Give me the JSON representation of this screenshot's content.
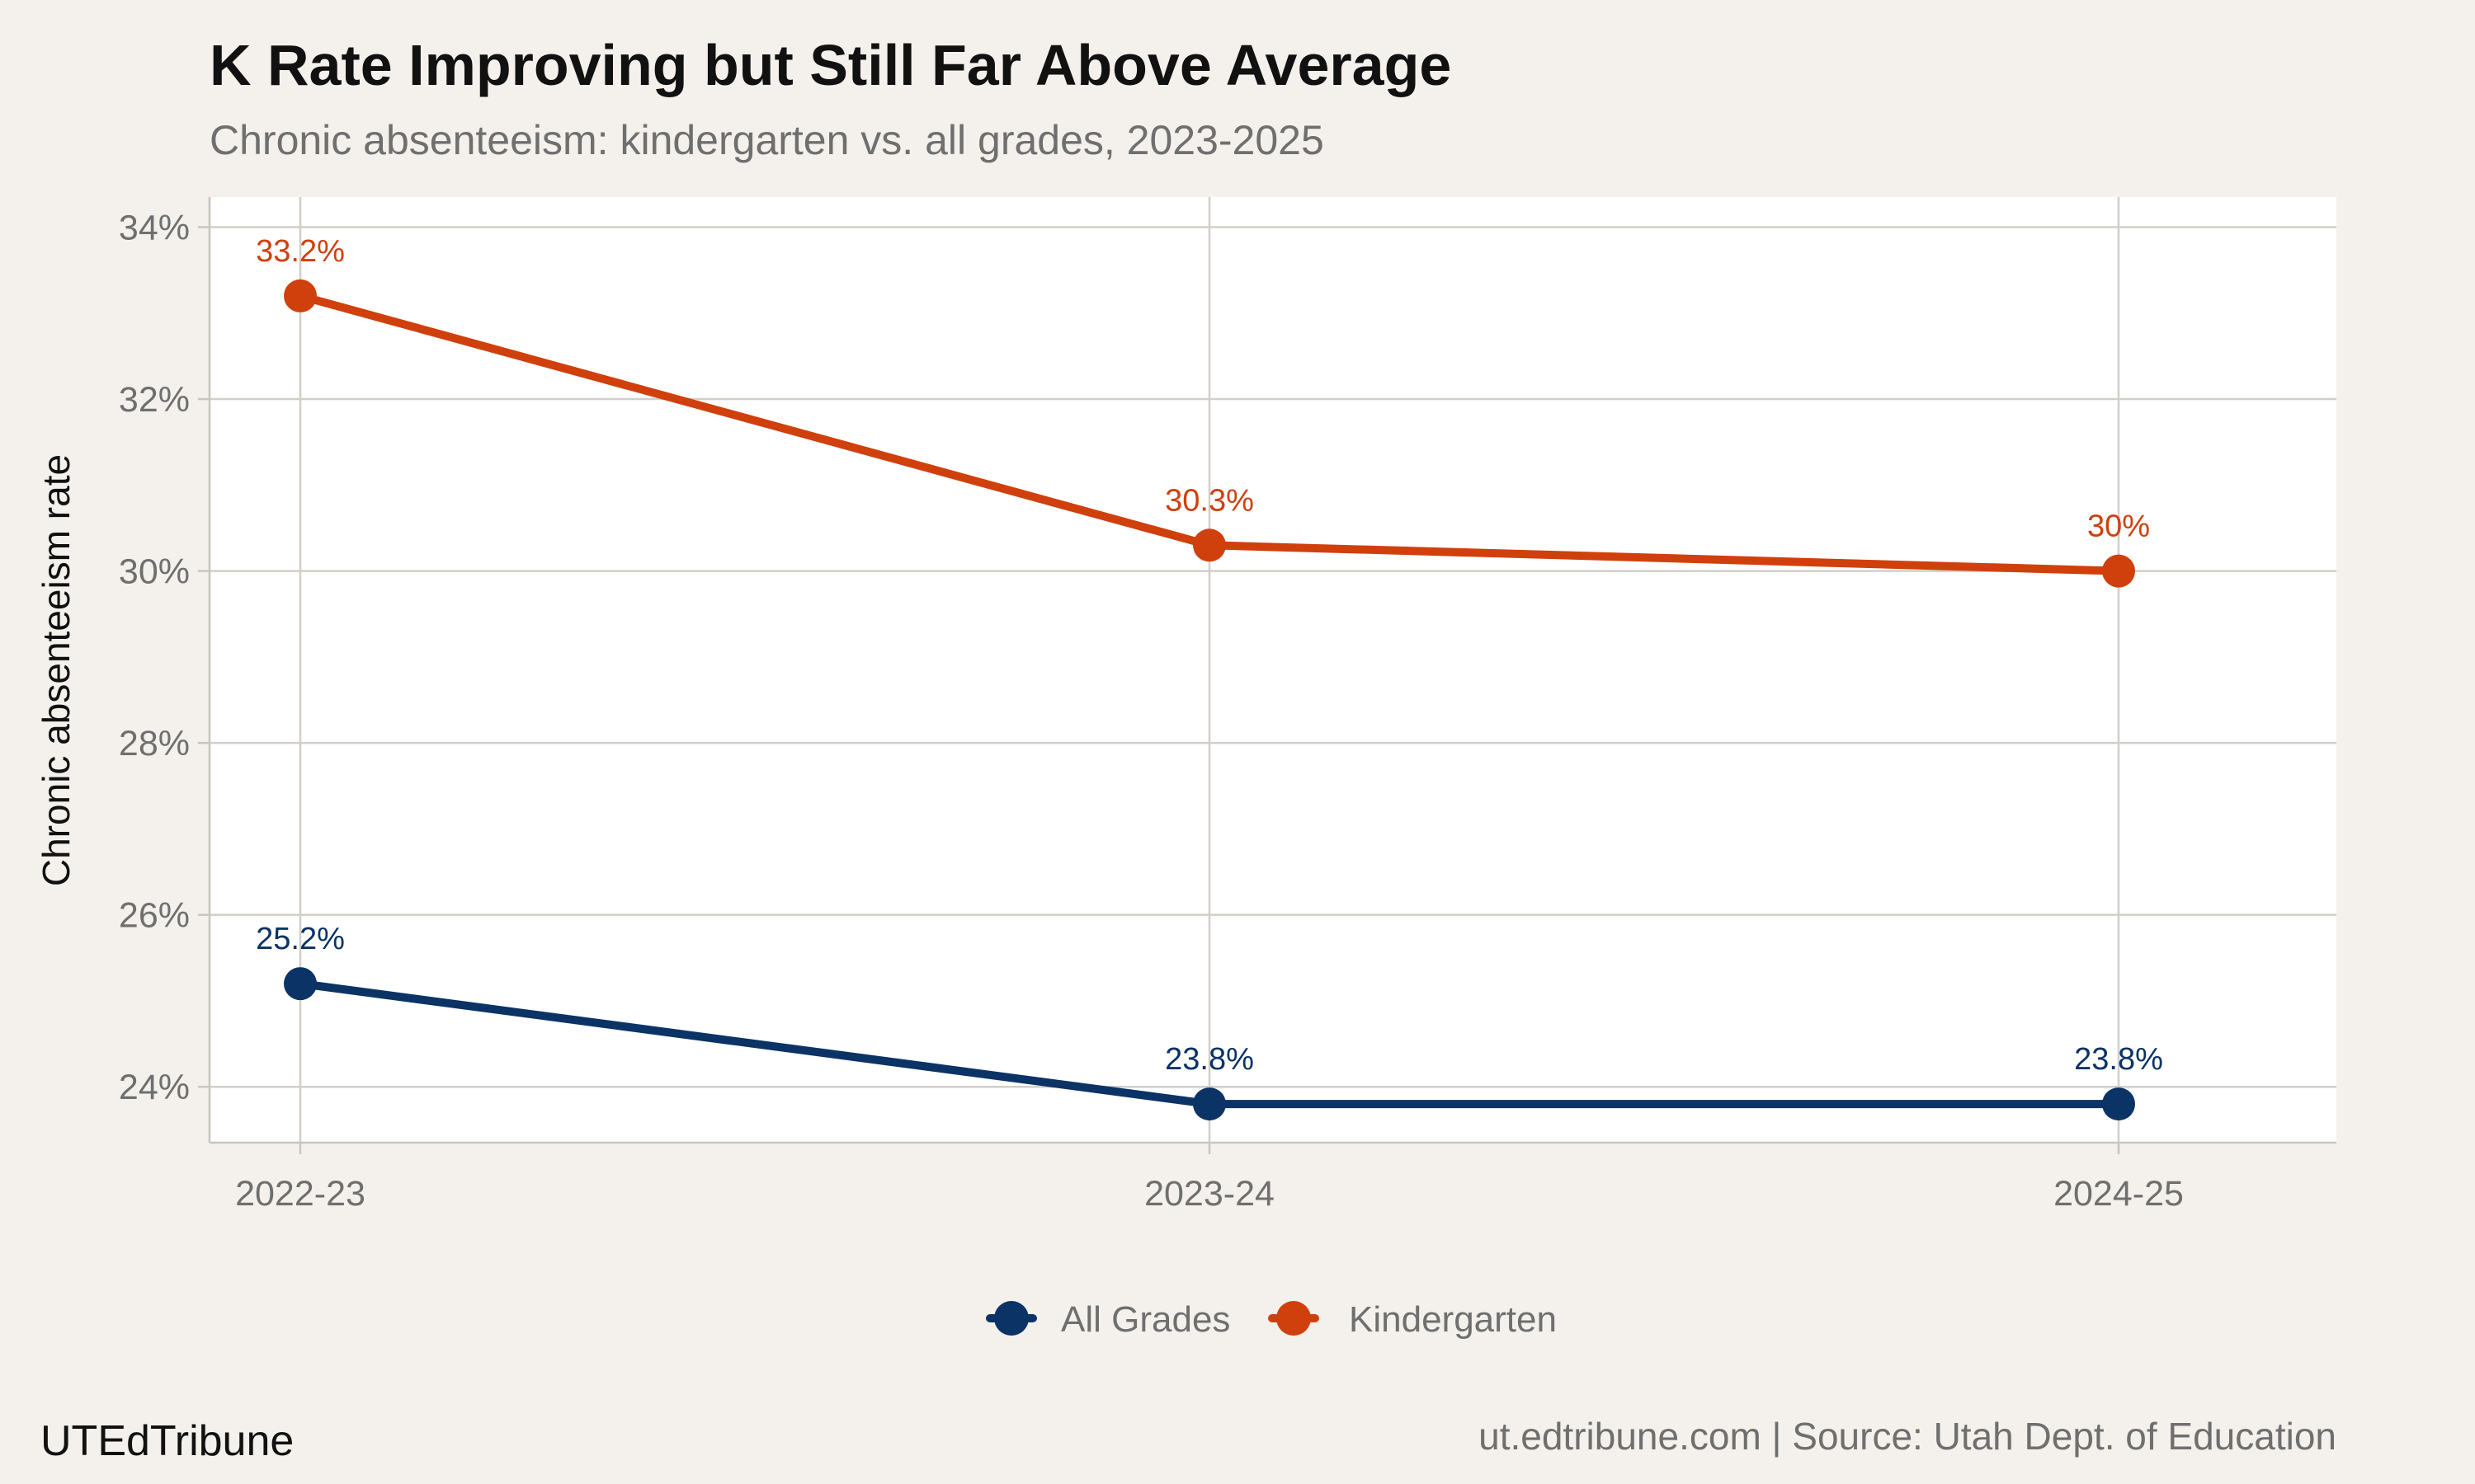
{
  "chart_data": {
    "type": "line",
    "title": "K Rate Improving but Still Far Above Average",
    "subtitle": "Chronic absenteeism: kindergarten vs. all grades, 2023-2025",
    "xlabel": "",
    "ylabel": "Chronic absenteeism rate",
    "categories": [
      "2022-23",
      "2023-24",
      "2024-25"
    ],
    "ylim": [
      23.35,
      34.35
    ],
    "yticks": [
      24,
      26,
      28,
      30,
      32,
      34
    ],
    "ytick_labels": [
      "24%",
      "26%",
      "28%",
      "30%",
      "32%",
      "34%"
    ],
    "grid": true,
    "legend_position": "bottom",
    "series": [
      {
        "name": "All Grades",
        "color": "#0b3366",
        "values": [
          25.2,
          23.8,
          23.8
        ],
        "labels": [
          "25.2%",
          "23.8%",
          "23.8%"
        ]
      },
      {
        "name": "Kindergarten",
        "color": "#d0400d",
        "values": [
          33.2,
          30.3,
          30.0
        ],
        "labels": [
          "33.2%",
          "30.3%",
          "30%"
        ]
      }
    ],
    "caption_left": "UTEdTribune",
    "caption_right": "ut.edtribune.com | Source: Utah Dept. of Education"
  }
}
